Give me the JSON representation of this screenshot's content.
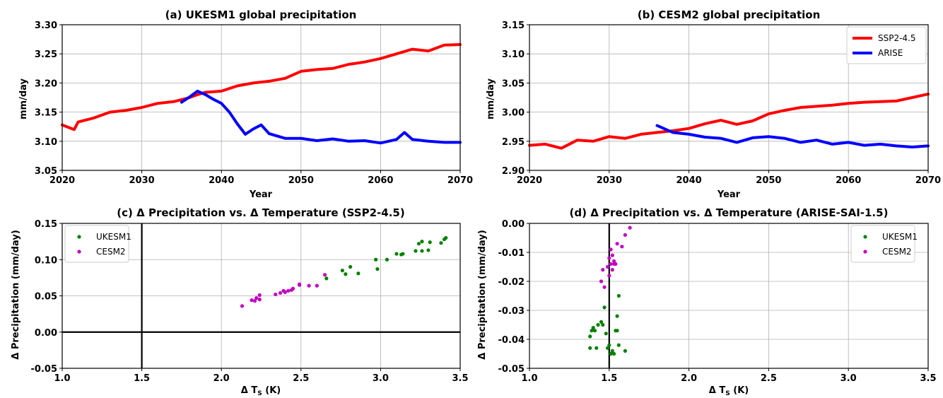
{
  "chart_data": [
    {
      "type": "line",
      "title": "(a) UKESM1 global precipitation",
      "xlabel": "Year",
      "ylabel": "mm/day",
      "xlim": [
        2020,
        2070
      ],
      "ylim": [
        3.05,
        3.3
      ],
      "xticks": [
        "2020",
        "2030",
        "2040",
        "2050",
        "2060",
        "2070"
      ],
      "yticks": [
        "3.05",
        "3.10",
        "3.15",
        "3.20",
        "3.25",
        "3.30"
      ],
      "grid": true,
      "legend": "none",
      "series": [
        {
          "color": "#ff0000",
          "x": [
            2020,
            2021.5,
            2022,
            2024,
            2026,
            2028,
            2030,
            2032,
            2034,
            2036,
            2037,
            2038,
            2040,
            2042,
            2044,
            2046,
            2048,
            2050,
            2052,
            2054,
            2056,
            2058,
            2060,
            2062,
            2064,
            2066,
            2068,
            2070
          ],
          "y": [
            3.128,
            3.12,
            3.133,
            3.14,
            3.15,
            3.153,
            3.158,
            3.165,
            3.168,
            3.175,
            3.18,
            3.184,
            3.186,
            3.195,
            3.2,
            3.203,
            3.208,
            3.22,
            3.223,
            3.225,
            3.232,
            3.236,
            3.242,
            3.25,
            3.258,
            3.255,
            3.265,
            3.266
          ]
        },
        {
          "color": "#0000ff",
          "x": [
            2035,
            2036,
            2037,
            2038,
            2039,
            2040,
            2041,
            2042,
            2043,
            2044,
            2045,
            2046,
            2048,
            2050,
            2052,
            2054,
            2056,
            2058,
            2060,
            2062,
            2063,
            2064,
            2066,
            2068,
            2070
          ],
          "y": [
            3.167,
            3.176,
            3.186,
            3.18,
            3.172,
            3.165,
            3.15,
            3.13,
            3.112,
            3.121,
            3.128,
            3.113,
            3.105,
            3.105,
            3.101,
            3.104,
            3.1,
            3.101,
            3.097,
            3.103,
            3.115,
            3.103,
            3.1,
            3.098,
            3.098
          ]
        }
      ]
    },
    {
      "type": "line",
      "title": "(b) CESM2 global precipitation",
      "xlabel": "Year",
      "ylabel": "mm/day",
      "xlim": [
        2020,
        2070
      ],
      "ylim": [
        2.9,
        3.15
      ],
      "xticks": [
        "2020",
        "2030",
        "2040",
        "2050",
        "2060",
        "2070"
      ],
      "yticks": [
        "2.90",
        "2.95",
        "3.00",
        "3.05",
        "3.10",
        "3.15"
      ],
      "grid": true,
      "legend": "top-right",
      "series": [
        {
          "name": "SSP2-4.5",
          "color": "#ff0000",
          "x": [
            2020,
            2022,
            2024,
            2026,
            2028,
            2030,
            2032,
            2034,
            2036,
            2038,
            2040,
            2042,
            2044,
            2046,
            2048,
            2050,
            2052,
            2054,
            2056,
            2058,
            2060,
            2062,
            2064,
            2066,
            2068,
            2070
          ],
          "y": [
            2.943,
            2.945,
            2.938,
            2.952,
            2.95,
            2.958,
            2.955,
            2.962,
            2.965,
            2.968,
            2.972,
            2.98,
            2.986,
            2.979,
            2.985,
            2.997,
            3.003,
            3.008,
            3.01,
            3.012,
            3.015,
            3.017,
            3.018,
            3.019,
            3.025,
            3.031
          ]
        },
        {
          "name": "ARISE",
          "color": "#0000ff",
          "x": [
            2036,
            2038,
            2040,
            2042,
            2044,
            2046,
            2048,
            2050,
            2052,
            2054,
            2056,
            2058,
            2060,
            2062,
            2064,
            2066,
            2068,
            2070
          ],
          "y": [
            2.977,
            2.965,
            2.962,
            2.957,
            2.955,
            2.948,
            2.956,
            2.958,
            2.955,
            2.948,
            2.952,
            2.945,
            2.948,
            2.943,
            2.945,
            2.942,
            2.94,
            2.942
          ]
        }
      ]
    },
    {
      "type": "scatter",
      "title": "(c) Δ Precipitation vs. Δ Temperature (SSP2-4.5)",
      "xlabel": "Δ T_S (K)",
      "ylabel": "Δ Precipitation (mm/day)",
      "xlim": [
        1.0,
        3.5
      ],
      "ylim": [
        -0.05,
        0.15
      ],
      "xticks": [
        "1.0",
        "1.5",
        "2.0",
        "2.5",
        "3.0",
        "3.5"
      ],
      "yticks": [
        "-0.05",
        "0.00",
        "0.05",
        "0.10",
        "0.15"
      ],
      "grid": true,
      "legend": "top-left",
      "reference_lines": {
        "x": 1.5,
        "y": 0.0
      },
      "series": [
        {
          "name": "UKESM1",
          "color": "#008000",
          "points": [
            [
              2.66,
              0.074
            ],
            [
              2.76,
              0.085
            ],
            [
              2.78,
              0.08
            ],
            [
              2.81,
              0.09
            ],
            [
              2.86,
              0.081
            ],
            [
              2.97,
              0.1
            ],
            [
              2.98,
              0.087
            ],
            [
              3.04,
              0.1
            ],
            [
              3.1,
              0.108
            ],
            [
              3.13,
              0.107
            ],
            [
              3.14,
              0.108
            ],
            [
              3.22,
              0.112
            ],
            [
              3.24,
              0.122
            ],
            [
              3.26,
              0.125
            ],
            [
              3.26,
              0.112
            ],
            [
              3.3,
              0.113
            ],
            [
              3.31,
              0.124
            ],
            [
              3.38,
              0.123
            ],
            [
              3.4,
              0.128
            ],
            [
              3.41,
              0.13
            ]
          ]
        },
        {
          "name": "CESM2",
          "color": "#c000c0",
          "points": [
            [
              2.13,
              0.036
            ],
            [
              2.19,
              0.044
            ],
            [
              2.21,
              0.043
            ],
            [
              2.22,
              0.047
            ],
            [
              2.24,
              0.051
            ],
            [
              2.24,
              0.045
            ],
            [
              2.34,
              0.052
            ],
            [
              2.37,
              0.054
            ],
            [
              2.39,
              0.057
            ],
            [
              2.4,
              0.055
            ],
            [
              2.42,
              0.057
            ],
            [
              2.44,
              0.058
            ],
            [
              2.45,
              0.06
            ],
            [
              2.49,
              0.066
            ],
            [
              2.49,
              0.065
            ],
            [
              2.55,
              0.064
            ],
            [
              2.6,
              0.064
            ],
            [
              2.65,
              0.079
            ]
          ]
        }
      ]
    },
    {
      "type": "scatter",
      "title": "(d) Δ Precipitation vs. Δ Temperature (ARISE-SAI-1.5)",
      "xlabel": "Δ T_S (K)",
      "ylabel": "Δ Precipitation (mm/day)",
      "xlim": [
        1.0,
        3.5
      ],
      "ylim": [
        -0.05,
        0.0
      ],
      "xticks": [
        "1.0",
        "1.5",
        "2.0",
        "2.5",
        "3.0",
        "3.5"
      ],
      "yticks": [
        "-0.05",
        "-0.04",
        "-0.03",
        "-0.02",
        "-0.01",
        "0.00"
      ],
      "grid": true,
      "legend": "top-right",
      "reference_lines": {
        "x": 1.5
      },
      "series": [
        {
          "name": "UKESM1",
          "color": "#008000",
          "points": [
            [
              1.38,
              -0.043
            ],
            [
              1.38,
              -0.039
            ],
            [
              1.39,
              -0.037
            ],
            [
              1.4,
              -0.036
            ],
            [
              1.41,
              -0.037
            ],
            [
              1.42,
              -0.043
            ],
            [
              1.43,
              -0.035
            ],
            [
              1.45,
              -0.034
            ],
            [
              1.46,
              -0.035
            ],
            [
              1.47,
              -0.029
            ],
            [
              1.48,
              -0.038
            ],
            [
              1.49,
              -0.043
            ],
            [
              1.5,
              -0.042
            ],
            [
              1.51,
              -0.045
            ],
            [
              1.52,
              -0.044
            ],
            [
              1.53,
              -0.045
            ],
            [
              1.54,
              -0.037
            ],
            [
              1.55,
              -0.037
            ],
            [
              1.55,
              -0.032
            ],
            [
              1.56,
              -0.042
            ],
            [
              1.56,
              -0.025
            ],
            [
              1.6,
              -0.044
            ]
          ]
        },
        {
          "name": "CESM2",
          "color": "#c000c0",
          "points": [
            [
              1.45,
              -0.02
            ],
            [
              1.46,
              -0.016
            ],
            [
              1.47,
              -0.022
            ],
            [
              1.49,
              -0.015
            ],
            [
              1.5,
              -0.012
            ],
            [
              1.5,
              -0.018
            ],
            [
              1.51,
              -0.014
            ],
            [
              1.51,
              -0.009
            ],
            [
              1.52,
              -0.016
            ],
            [
              1.52,
              -0.011
            ],
            [
              1.53,
              -0.013
            ],
            [
              1.53,
              -0.014
            ],
            [
              1.54,
              -0.014
            ],
            [
              1.55,
              -0.007
            ],
            [
              1.58,
              -0.008
            ],
            [
              1.6,
              -0.004
            ],
            [
              1.63,
              -0.0015
            ]
          ]
        }
      ]
    }
  ]
}
